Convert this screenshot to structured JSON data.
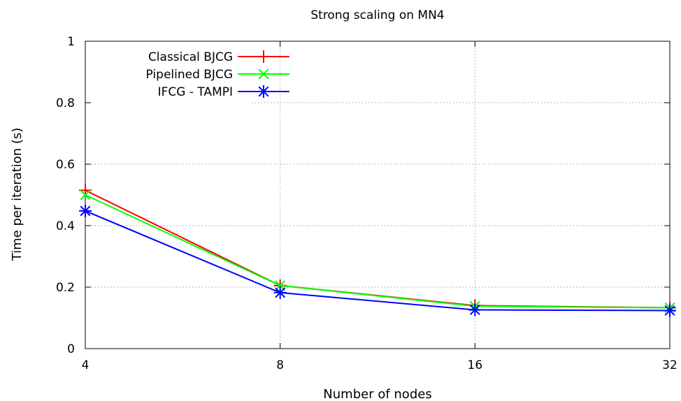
{
  "chart_data": {
    "type": "line",
    "title": "Strong scaling on MN4",
    "xlabel": "Number of nodes",
    "ylabel": "Time per iteration (s)",
    "x_scale": "log2",
    "x": [
      4,
      8,
      16,
      32
    ],
    "x_tick_labels": [
      "4",
      "8",
      "16",
      "32"
    ],
    "y_ticks": [
      0,
      0.2,
      0.4,
      0.6,
      0.8,
      1
    ],
    "y_tick_labels": [
      "0",
      "0.2",
      "0.4",
      "0.6",
      "0.8",
      "1"
    ],
    "ylim": [
      0,
      1
    ],
    "grid": true,
    "legend_position": "top-left",
    "series": [
      {
        "name": "Classical BJCG",
        "values": [
          0.515,
          0.205,
          0.14,
          0.133
        ],
        "color": "#ff0000",
        "marker": "plus"
      },
      {
        "name": "Pipelined BJCG",
        "values": [
          0.5,
          0.205,
          0.138,
          0.133
        ],
        "color": "#00ff00",
        "marker": "cross"
      },
      {
        "name": "IFCG - TAMPI",
        "values": [
          0.448,
          0.182,
          0.126,
          0.124
        ],
        "color": "#0000ff",
        "marker": "star"
      }
    ]
  }
}
